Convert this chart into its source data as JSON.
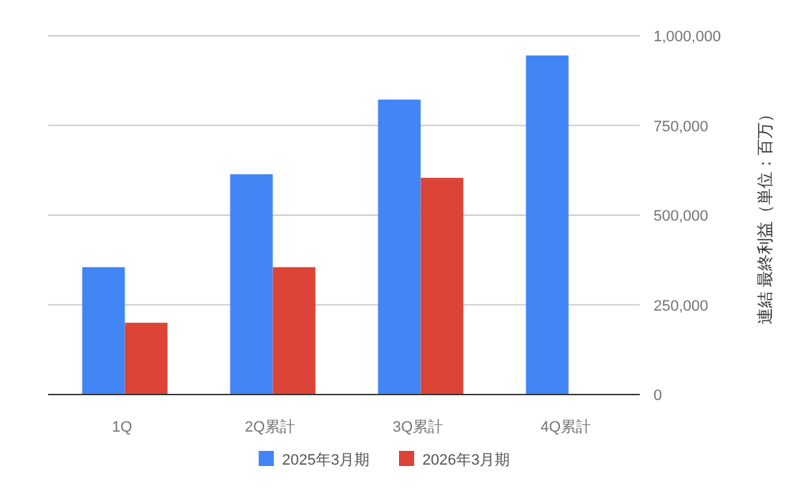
{
  "chart_data": {
    "type": "bar",
    "ylabel": "連結 最終利益（単位：百万）",
    "categories": [
      "1Q",
      "2Q累計",
      "3Q累計",
      "4Q累計"
    ],
    "series": [
      {
        "name": "2025年3月期",
        "color": "#4285f4",
        "values": [
          355000,
          614000,
          822000,
          945000
        ]
      },
      {
        "name": "2026年3月期",
        "color": "#db4437",
        "values": [
          200000,
          355000,
          604000,
          null
        ]
      }
    ],
    "ylim": [
      0,
      1000000
    ],
    "yticks": [
      {
        "value": 0,
        "label": "0"
      },
      {
        "value": 250000,
        "label": "250,000"
      },
      {
        "value": 500000,
        "label": "500,000"
      },
      {
        "value": 750000,
        "label": "750,000"
      },
      {
        "value": 1000000,
        "label": "1,000,000"
      }
    ],
    "grid": "y",
    "legend": "bottom"
  }
}
